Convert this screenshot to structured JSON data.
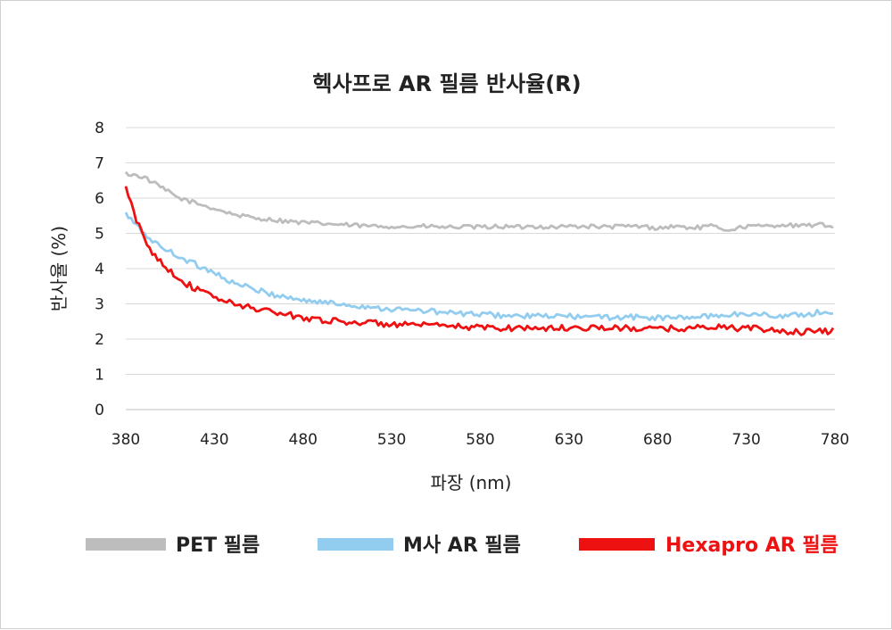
{
  "chart_data": {
    "type": "line",
    "title": "헥사프로 AR 필름 반사율(R)",
    "xlabel": "파장 (nm)",
    "ylabel": "반사율 (%)",
    "xlim": [
      380,
      780
    ],
    "ylim": [
      0,
      8
    ],
    "xticks": [
      "380",
      "430",
      "480",
      "530",
      "580",
      "630",
      "680",
      "730",
      "780"
    ],
    "yticks": [
      "0",
      "1",
      "2",
      "3",
      "4",
      "5",
      "6",
      "7",
      "8"
    ],
    "grid": true,
    "legend_position": "bottom",
    "series": [
      {
        "name": "PET 필름",
        "color": "#bdbdbd",
        "x": [
          380,
          390,
          400,
          410,
          420,
          430,
          440,
          450,
          460,
          470,
          480,
          490,
          500,
          510,
          520,
          530,
          540,
          550,
          560,
          570,
          580,
          590,
          600,
          610,
          620,
          630,
          640,
          650,
          660,
          670,
          680,
          690,
          700,
          710,
          720,
          730,
          740,
          750,
          760,
          770,
          780
        ],
        "values": [
          6.7,
          6.6,
          6.3,
          6.0,
          5.85,
          5.7,
          5.55,
          5.45,
          5.4,
          5.35,
          5.3,
          5.28,
          5.25,
          5.22,
          5.2,
          5.2,
          5.18,
          5.2,
          5.17,
          5.18,
          5.17,
          5.2,
          5.17,
          5.2,
          5.18,
          5.2,
          5.2,
          5.18,
          5.2,
          5.2,
          5.15,
          5.2,
          5.15,
          5.2,
          5.1,
          5.2,
          5.2,
          5.25,
          5.2,
          5.25,
          5.2
        ]
      },
      {
        "name": "M사 AR 필름",
        "color": "#92cdef",
        "x": [
          380,
          390,
          400,
          410,
          420,
          430,
          440,
          450,
          460,
          470,
          480,
          490,
          500,
          510,
          520,
          530,
          540,
          550,
          560,
          570,
          580,
          590,
          600,
          610,
          620,
          630,
          640,
          650,
          660,
          670,
          680,
          690,
          700,
          710,
          720,
          730,
          740,
          750,
          760,
          770,
          780
        ],
        "values": [
          5.55,
          5.0,
          4.6,
          4.35,
          4.1,
          3.9,
          3.6,
          3.45,
          3.3,
          3.2,
          3.1,
          3.05,
          3.0,
          2.95,
          2.9,
          2.85,
          2.82,
          2.8,
          2.75,
          2.72,
          2.7,
          2.68,
          2.65,
          2.65,
          2.65,
          2.65,
          2.62,
          2.62,
          2.62,
          2.62,
          2.6,
          2.6,
          2.62,
          2.65,
          2.7,
          2.7,
          2.7,
          2.65,
          2.68,
          2.75,
          2.72
        ]
      },
      {
        "name": "Hexapro AR 필름",
        "color": "#ee1111",
        "x": [
          380,
          385,
          390,
          395,
          400,
          410,
          420,
          430,
          440,
          450,
          460,
          470,
          480,
          490,
          500,
          510,
          520,
          530,
          540,
          550,
          560,
          570,
          580,
          590,
          600,
          610,
          620,
          630,
          640,
          650,
          660,
          670,
          680,
          690,
          700,
          710,
          720,
          730,
          740,
          750,
          760,
          770,
          780
        ],
        "values": [
          6.3,
          5.5,
          4.9,
          4.45,
          4.2,
          3.7,
          3.4,
          3.2,
          3.0,
          2.9,
          2.8,
          2.7,
          2.62,
          2.55,
          2.5,
          2.48,
          2.45,
          2.42,
          2.4,
          2.38,
          2.36,
          2.35,
          2.33,
          2.32,
          2.32,
          2.32,
          2.3,
          2.32,
          2.33,
          2.32,
          2.3,
          2.3,
          2.28,
          2.3,
          2.32,
          2.35,
          2.33,
          2.3,
          2.28,
          2.22,
          2.2,
          2.2,
          2.25
        ]
      }
    ]
  }
}
